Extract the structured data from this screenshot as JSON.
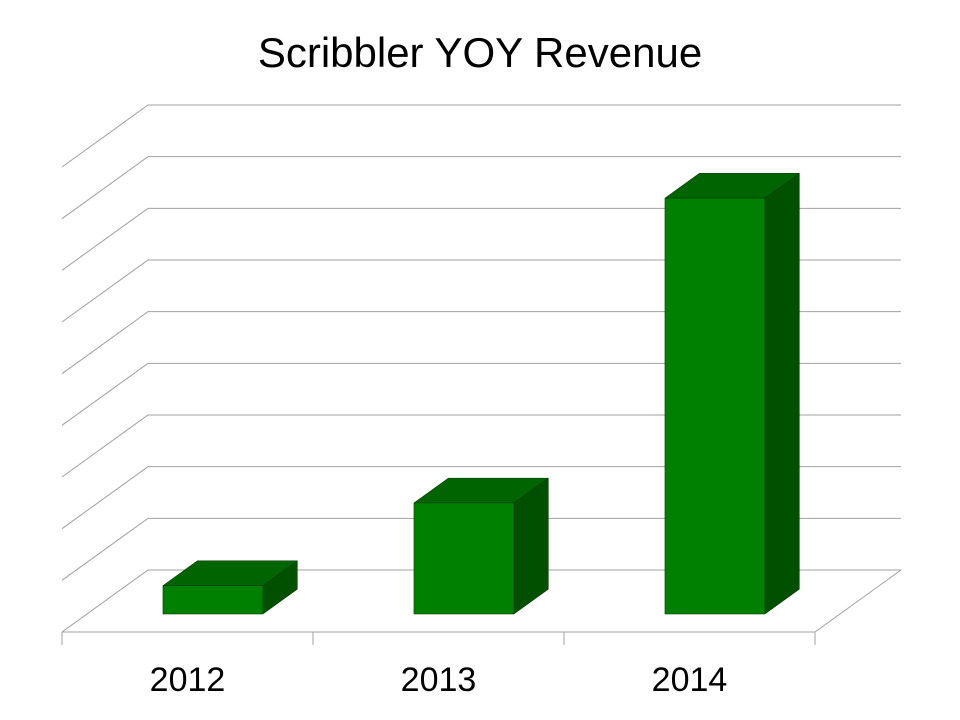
{
  "chart_data": {
    "type": "bar3d",
    "title": "Scribbler YOY Revenue",
    "categories": [
      "2012",
      "2013",
      "2014"
    ],
    "values": [
      0.55,
      2.15,
      8.05
    ],
    "color": "#008000",
    "ylim": [
      0,
      9
    ],
    "yticks": [
      0,
      1,
      2,
      3,
      4,
      5,
      6,
      7,
      8,
      9
    ],
    "grid": true
  }
}
